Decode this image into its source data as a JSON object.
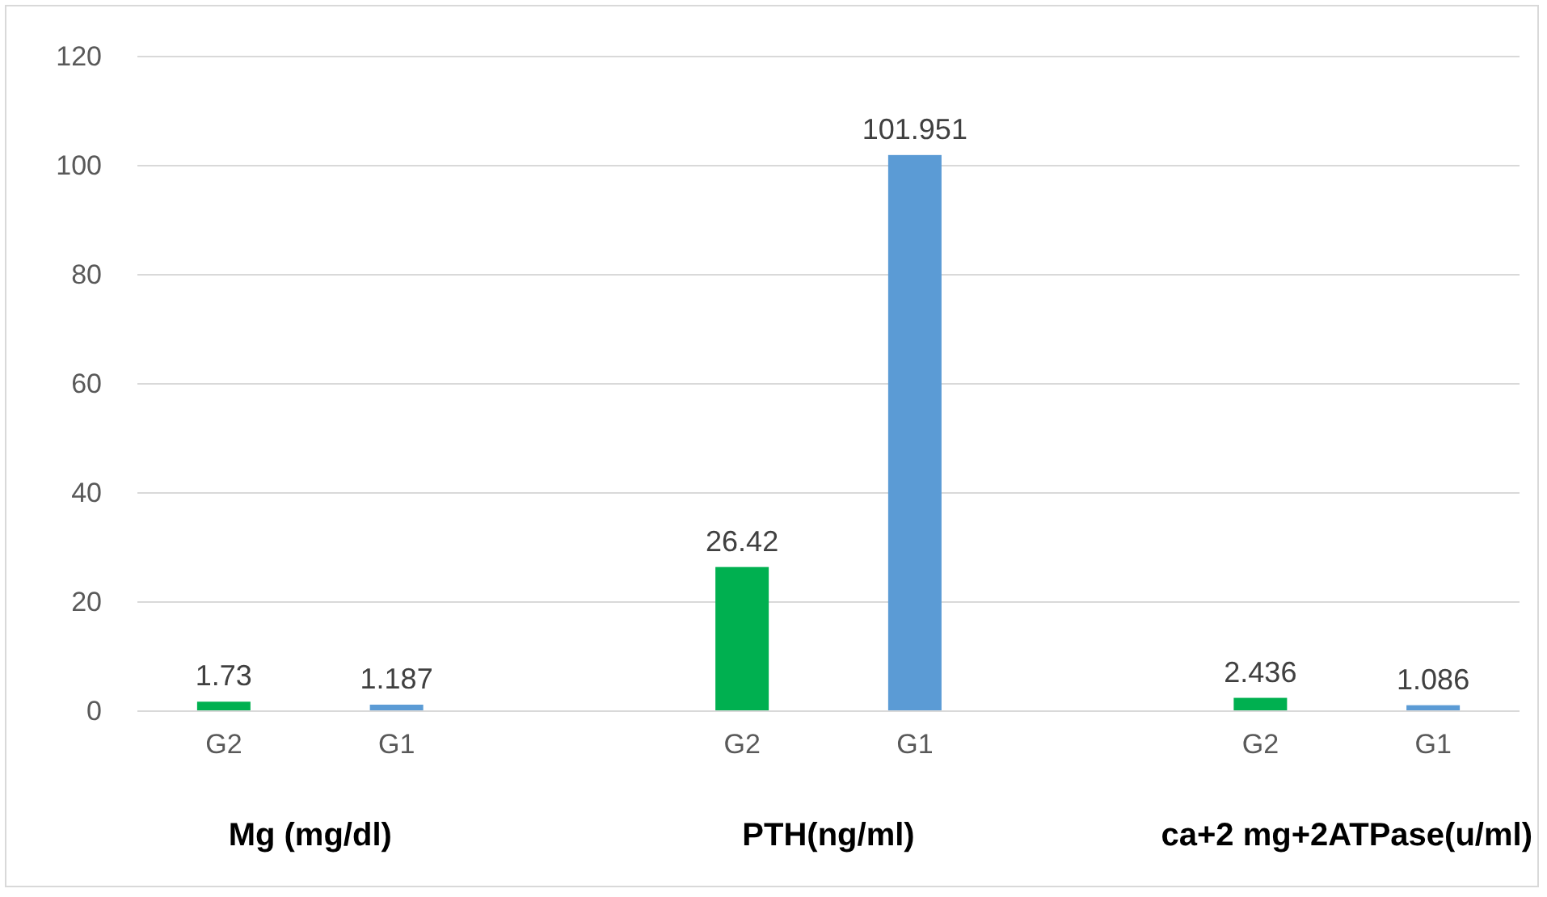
{
  "chart_data": {
    "type": "bar",
    "categories": [
      "G2",
      "G1",
      "G2",
      "G1",
      "G2",
      "G1"
    ],
    "values": [
      1.73,
      1.187,
      26.42,
      101.951,
      2.436,
      1.086
    ],
    "colors": [
      "#00b050",
      "#5b9bd5",
      "#00b050",
      "#5b9bd5",
      "#00b050",
      "#5b9bd5"
    ],
    "ylim": [
      0,
      120
    ],
    "yticks": [
      0,
      20,
      40,
      60,
      80,
      100,
      120
    ],
    "grid": "y",
    "data_labels": true,
    "annotations": [
      "Mg (mg/dl)",
      "PTH(ng/ml)",
      "ca+2 mg+2ATPase(u/ml)"
    ]
  }
}
